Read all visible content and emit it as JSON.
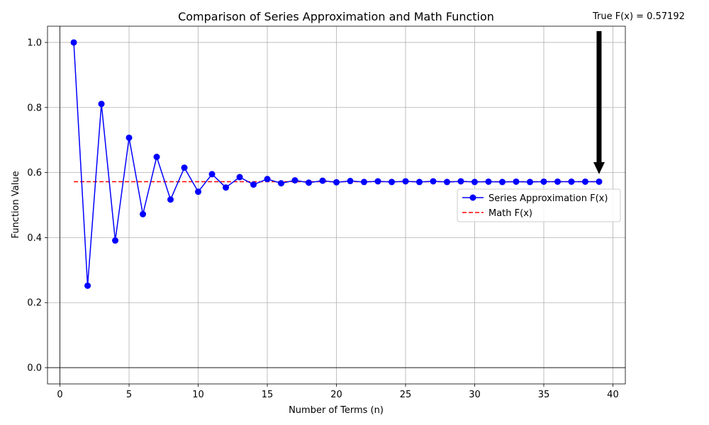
{
  "chart_data": {
    "type": "line",
    "title": "Comparison of Series Approximation and Math Function",
    "xlabel": "Number of Terms (n)",
    "ylabel": "Function Value",
    "xlim": [
      -0.9,
      40.9
    ],
    "ylim": [
      -0.05,
      1.05
    ],
    "xticks": [
      0,
      5,
      10,
      15,
      20,
      25,
      30,
      35,
      40
    ],
    "yticks": [
      0.0,
      0.2,
      0.4,
      0.6,
      0.8,
      1.0
    ],
    "xtick_labels": [
      "0",
      "5",
      "10",
      "15",
      "20",
      "25",
      "30",
      "35",
      "40"
    ],
    "ytick_labels": [
      "0.0",
      "0.2",
      "0.4",
      "0.6",
      "0.8",
      "1.0"
    ],
    "grid": true,
    "legend_position": "center-right",
    "series": [
      {
        "name": "Series Approximation F(x)",
        "style": "solid-line-circle-markers",
        "color": "#0000ff",
        "x": [
          1,
          2,
          3,
          4,
          5,
          6,
          7,
          8,
          9,
          10,
          11,
          12,
          13,
          14,
          15,
          16,
          17,
          18,
          19,
          20,
          21,
          22,
          23,
          24,
          25,
          26,
          27,
          28,
          29,
          30,
          31,
          32,
          33,
          34,
          35,
          36,
          37,
          38,
          39
        ],
        "y": [
          1.0,
          0.252,
          0.811,
          0.391,
          0.707,
          0.472,
          0.648,
          0.517,
          0.615,
          0.541,
          0.595,
          0.554,
          0.586,
          0.563,
          0.58,
          0.567,
          0.576,
          0.569,
          0.575,
          0.57,
          0.574,
          0.571,
          0.573,
          0.571,
          0.573,
          0.571,
          0.573,
          0.571,
          0.573,
          0.571,
          0.572,
          0.571,
          0.572,
          0.571,
          0.572,
          0.572,
          0.572,
          0.572,
          0.572
        ]
      },
      {
        "name": "Math F(x)",
        "style": "dashed-line",
        "color": "#ff0000",
        "x": [
          1,
          39
        ],
        "y": [
          0.57192,
          0.57192
        ]
      }
    ],
    "annotation": {
      "text": "True F(x) = 0.57192",
      "arrow_tail": [
        39,
        1.035
      ],
      "arrow_head": [
        39,
        0.595
      ]
    }
  }
}
